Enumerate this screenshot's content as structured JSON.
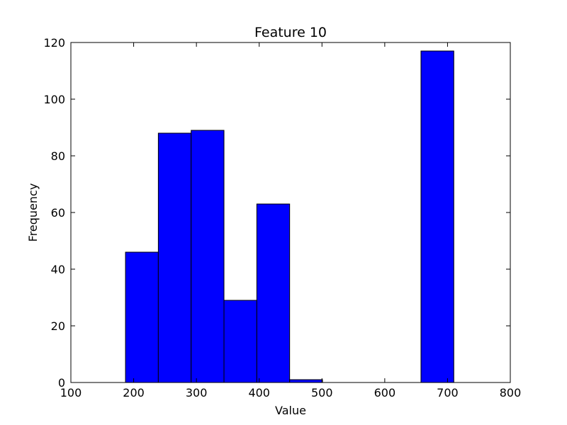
{
  "chart_data": {
    "type": "bar",
    "title": "Feature 10",
    "xlabel": "Value",
    "ylabel": "Frequency",
    "xlim": [
      100,
      800
    ],
    "ylim": [
      0,
      120
    ],
    "xticks": [
      100,
      200,
      300,
      400,
      500,
      600,
      700,
      800
    ],
    "yticks": [
      0,
      20,
      40,
      60,
      80,
      100,
      120
    ],
    "bin_edges": [
      187,
      239.3,
      291.6,
      343.9,
      396.2,
      448.5,
      500.8,
      553.1,
      605.4,
      657.7,
      710
    ],
    "counts": [
      46,
      88,
      89,
      29,
      63,
      1,
      0,
      0,
      0,
      117
    ],
    "bar_color": "#0000ff",
    "edge_color": "#000000",
    "grid": false
  }
}
